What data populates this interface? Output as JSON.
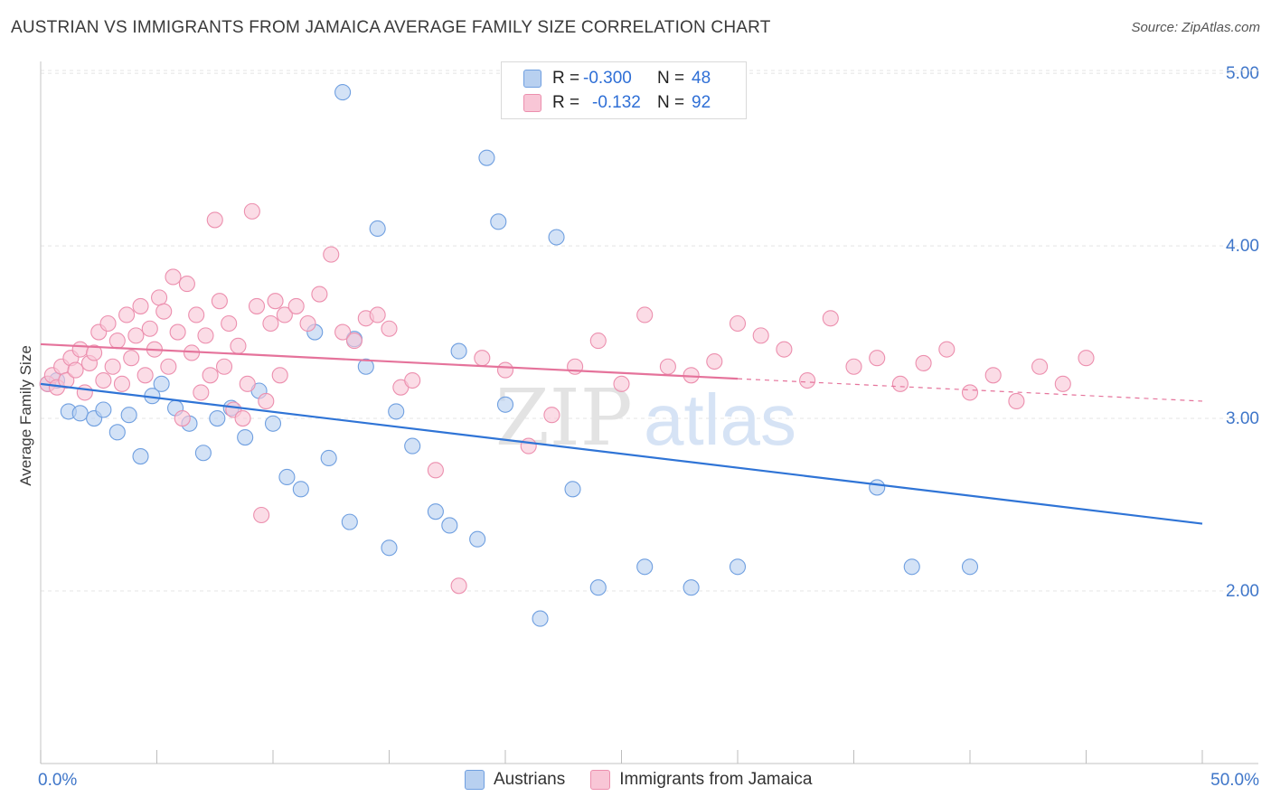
{
  "header": {
    "title": "AUSTRIAN VS IMMIGRANTS FROM JAMAICA AVERAGE FAMILY SIZE CORRELATION CHART",
    "source": "Source: ZipAtlas.com"
  },
  "watermark": {
    "zip": "ZIP",
    "atlas": "atlas"
  },
  "legend": {
    "rows": [
      {
        "r_label": "R =",
        "r_value": "-0.300",
        "n_label": "N =",
        "n_value": "48"
      },
      {
        "r_label": "R =",
        "r_value": "-0.132",
        "n_label": "N =",
        "n_value": "92"
      }
    ]
  },
  "bottom_legend": {
    "austrians": "Austrians",
    "jamaica": "Immigrants from Jamaica"
  },
  "colors": {
    "blue_fill": "#b8d0f0",
    "blue_stroke": "#6f9fe0",
    "blue_line": "#2f74d6",
    "pink_fill": "#f8c6d6",
    "pink_stroke": "#ec8fae",
    "pink_line": "#e5739b",
    "axis_text": "#3f76c9",
    "grid": "#e4e4e4"
  },
  "chart_data": {
    "type": "scatter",
    "ylabel": "Average Family Size",
    "xlim": [
      0,
      50
    ],
    "ylim": [
      1.0,
      5.1
    ],
    "x_tick_labels": {
      "min": "0.0%",
      "max": "50.0%"
    },
    "y_ticks": [
      {
        "value": 2.0,
        "label": "2.00"
      },
      {
        "value": 3.0,
        "label": "3.00"
      },
      {
        "value": 4.0,
        "label": "4.00"
      },
      {
        "value": 5.0,
        "label": "5.00"
      }
    ],
    "grid": true,
    "legend_position": "top-center",
    "series": [
      {
        "name": "Austrians",
        "x": [
          0.3,
          0.7,
          1.2,
          1.7,
          2.3,
          2.7,
          3.3,
          3.8,
          4.3,
          4.8,
          5.2,
          5.8,
          6.4,
          7.0,
          7.6,
          8.2,
          8.8,
          9.4,
          10.0,
          10.6,
          11.2,
          11.8,
          12.4,
          13.0,
          13.3,
          13.5,
          14.0,
          14.5,
          15.0,
          15.3,
          16.0,
          17.0,
          17.6,
          18.0,
          18.8,
          19.2,
          19.7,
          20.0,
          21.5,
          22.2,
          22.9,
          24.0,
          26.0,
          28.0,
          30.0,
          36.0,
          37.5,
          40.0
        ],
        "y": [
          3.2,
          3.22,
          3.04,
          3.03,
          3.0,
          3.05,
          2.92,
          3.02,
          2.78,
          3.13,
          3.2,
          3.06,
          2.97,
          2.8,
          3.0,
          3.06,
          2.89,
          3.16,
          2.97,
          2.66,
          2.59,
          3.5,
          2.77,
          4.89,
          2.4,
          3.46,
          3.3,
          4.1,
          2.25,
          3.04,
          2.84,
          2.46,
          2.38,
          3.39,
          2.3,
          4.51,
          4.14,
          3.08,
          1.84,
          4.05,
          2.59,
          2.02,
          2.14,
          2.02,
          2.14,
          2.6,
          2.14,
          2.14
        ]
      },
      {
        "name": "Immigrants from Jamaica",
        "x": [
          0.3,
          0.5,
          0.7,
          0.9,
          1.1,
          1.3,
          1.5,
          1.7,
          1.9,
          2.1,
          2.3,
          2.5,
          2.7,
          2.9,
          3.1,
          3.3,
          3.5,
          3.7,
          3.9,
          4.1,
          4.3,
          4.5,
          4.7,
          4.9,
          5.1,
          5.3,
          5.5,
          5.7,
          5.9,
          6.1,
          6.3,
          6.5,
          6.7,
          6.9,
          7.1,
          7.3,
          7.5,
          7.7,
          7.9,
          8.1,
          8.3,
          8.5,
          8.7,
          8.9,
          9.1,
          9.3,
          9.5,
          9.7,
          9.9,
          10.1,
          10.3,
          10.5,
          11.0,
          11.5,
          12.0,
          12.5,
          13.0,
          13.5,
          14.0,
          14.5,
          15.0,
          15.5,
          16.0,
          17.0,
          18.0,
          19.0,
          20.0,
          21.0,
          22.0,
          23.0,
          24.0,
          25.0,
          26.0,
          27.0,
          28.0,
          29.0,
          30.0,
          31.0,
          32.0,
          33.0,
          34.0,
          35.0,
          36.0,
          37.0,
          38.0,
          39.0,
          40.0,
          41.0,
          42.0,
          43.0,
          44.0,
          45.0
        ],
        "y": [
          3.2,
          3.25,
          3.18,
          3.3,
          3.22,
          3.35,
          3.28,
          3.4,
          3.15,
          3.32,
          3.38,
          3.5,
          3.22,
          3.55,
          3.3,
          3.45,
          3.2,
          3.6,
          3.35,
          3.48,
          3.65,
          3.25,
          3.52,
          3.4,
          3.7,
          3.62,
          3.3,
          3.82,
          3.5,
          3.0,
          3.78,
          3.38,
          3.6,
          3.15,
          3.48,
          3.25,
          4.15,
          3.68,
          3.3,
          3.55,
          3.05,
          3.42,
          3.0,
          3.2,
          4.2,
          3.65,
          2.44,
          3.1,
          3.55,
          3.68,
          3.25,
          3.6,
          3.65,
          3.55,
          3.72,
          3.95,
          3.5,
          3.45,
          3.58,
          3.6,
          3.52,
          3.18,
          3.22,
          2.7,
          2.03,
          3.35,
          3.28,
          2.84,
          3.02,
          3.3,
          3.45,
          3.2,
          3.6,
          3.3,
          3.25,
          3.33,
          3.55,
          3.48,
          3.4,
          3.22,
          3.58,
          3.3,
          3.35,
          3.2,
          3.32,
          3.4,
          3.15,
          3.25,
          3.1,
          3.3,
          3.2,
          3.35
        ]
      }
    ],
    "trendlines": [
      {
        "series": "Austrians",
        "x": [
          0,
          50
        ],
        "y": [
          3.2,
          2.39
        ]
      },
      {
        "series": "Immigrants from Jamaica",
        "x": [
          0,
          30
        ],
        "y": [
          3.43,
          3.23
        ],
        "dashed_to": [
          50,
          3.1
        ]
      }
    ]
  }
}
